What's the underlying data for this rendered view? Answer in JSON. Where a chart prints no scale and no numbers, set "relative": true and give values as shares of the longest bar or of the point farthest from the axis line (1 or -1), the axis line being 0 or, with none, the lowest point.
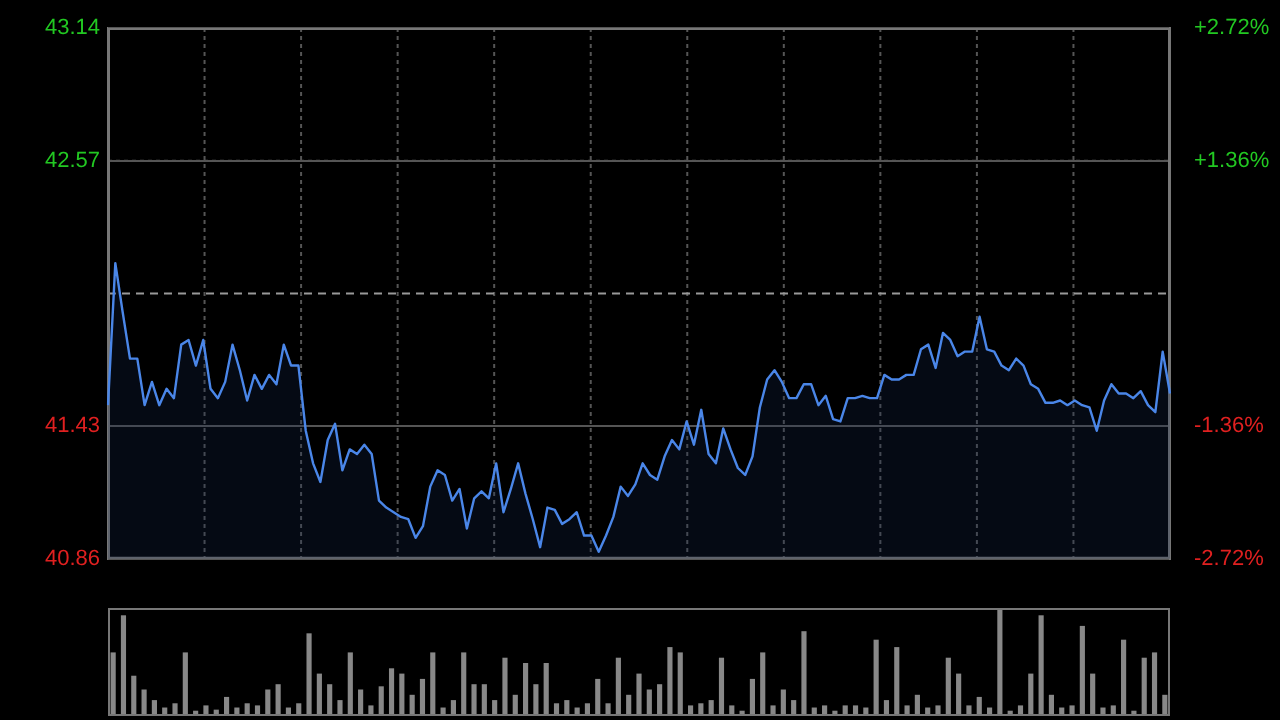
{
  "chart_data": [
    {
      "type": "area",
      "categories": [
        null,
        null,
        null,
        null,
        null,
        null,
        null,
        null,
        null,
        null,
        null,
        null,
        null,
        null,
        null,
        null,
        null,
        null,
        null,
        null,
        null,
        null,
        null,
        null,
        null,
        null,
        null,
        null,
        null,
        null,
        null,
        null,
        null,
        null,
        null,
        null,
        null,
        null,
        null,
        null,
        null,
        null,
        null,
        null,
        null,
        null,
        null,
        null,
        null,
        null,
        null,
        null,
        null,
        null,
        null,
        null,
        null,
        null,
        null,
        null,
        null,
        null,
        null,
        null,
        null,
        null,
        null,
        null,
        null,
        null,
        null,
        null,
        null,
        null,
        null,
        null,
        null,
        null,
        null,
        null,
        null,
        null,
        null,
        null,
        null,
        null,
        null,
        null,
        null,
        null,
        null,
        null,
        null,
        null,
        null,
        null,
        null,
        null,
        null,
        null,
        null,
        null,
        null,
        null,
        null,
        null,
        null,
        null,
        null,
        null,
        null,
        null,
        null,
        null,
        null,
        null,
        null,
        null,
        null,
        null,
        null,
        null,
        null,
        null,
        null,
        null,
        null,
        null,
        null,
        null,
        null,
        null,
        null,
        null,
        null,
        null,
        null,
        null,
        null,
        null,
        null,
        null,
        null,
        null,
        null,
        null
      ],
      "series": [
        {
          "color": "#4a86e8",
          "values": [
            41.52,
            42.13,
            41.92,
            41.72,
            41.72,
            41.52,
            41.62,
            41.52,
            41.59,
            41.55,
            41.78,
            41.8,
            41.69,
            41.8,
            41.59,
            41.55,
            41.62,
            41.78,
            41.67,
            41.54,
            41.65,
            41.59,
            41.65,
            41.61,
            41.78,
            41.69,
            41.69,
            41.41,
            41.27,
            41.19,
            41.37,
            41.44,
            41.24,
            41.33,
            41.31,
            41.35,
            41.31,
            41.11,
            41.08,
            41.06,
            41.04,
            41.03,
            40.95,
            41.0,
            41.17,
            41.24,
            41.22,
            41.11,
            41.16,
            40.99,
            41.12,
            41.15,
            41.12,
            41.27,
            41.06,
            41.16,
            41.27,
            41.14,
            41.03,
            40.91,
            41.08,
            41.07,
            41.01,
            41.03,
            41.06,
            40.96,
            40.96,
            40.89,
            40.96,
            41.04,
            41.17,
            41.13,
            41.18,
            41.27,
            41.22,
            41.2,
            41.3,
            41.37,
            41.33,
            41.45,
            41.35,
            41.5,
            41.31,
            41.27,
            41.42,
            41.33,
            41.25,
            41.22,
            41.3,
            41.51,
            41.63,
            41.67,
            41.62,
            41.55,
            41.55,
            41.61,
            41.61,
            41.52,
            41.56,
            41.46,
            41.45,
            41.55,
            41.55,
            41.56,
            41.55,
            41.55,
            41.65,
            41.63,
            41.63,
            41.65,
            41.65,
            41.76,
            41.78,
            41.68,
            41.83,
            41.8,
            41.73,
            41.75,
            41.75,
            41.9,
            41.76,
            41.75,
            41.69,
            41.67,
            41.72,
            41.69,
            41.61,
            41.59,
            41.53,
            41.53,
            41.54,
            41.52,
            41.54,
            41.52,
            41.51,
            41.41,
            41.54,
            41.61,
            41.57,
            41.57,
            41.55,
            41.58,
            41.52,
            41.49,
            41.75,
            41.57
          ]
        }
      ],
      "ylim": [
        40.86,
        43.14
      ],
      "yticks": [
        40.86,
        41.43,
        42.57,
        43.14
      ],
      "y2lim": [
        -2.72,
        2.72
      ],
      "y2ticks": [
        {
          "value": -2.72,
          "label": "-2.72%"
        },
        {
          "value": -1.36,
          "label": "-1.36%"
        },
        {
          "value": 1.36,
          "label": "+1.36%"
        },
        {
          "value": 2.72,
          "label": "+2.72%"
        }
      ],
      "ref_lines": [
        {
          "axis": "y",
          "value": 42,
          "line_style": "dashed",
          "color": "#999999"
        }
      ],
      "grid": true,
      "legend": false,
      "tick_labels": "y"
    },
    {
      "type": "bar",
      "relative": true,
      "categories": [
        null,
        null,
        null,
        null,
        null,
        null,
        null,
        null,
        null,
        null,
        null,
        null,
        null,
        null,
        null,
        null,
        null,
        null,
        null,
        null,
        null,
        null,
        null,
        null,
        null,
        null,
        null,
        null,
        null,
        null,
        null,
        null,
        null,
        null,
        null,
        null,
        null,
        null,
        null,
        null,
        null,
        null,
        null,
        null,
        null,
        null,
        null,
        null,
        null,
        null,
        null,
        null,
        null,
        null,
        null,
        null,
        null,
        null,
        null,
        null,
        null,
        null,
        null,
        null,
        null,
        null,
        null,
        null,
        null,
        null,
        null,
        null,
        null,
        null,
        null,
        null,
        null,
        null,
        null,
        null,
        null,
        null,
        null,
        null,
        null,
        null,
        null,
        null,
        null,
        null,
        null,
        null,
        null,
        null,
        null,
        null,
        null,
        null,
        null,
        null,
        null,
        null,
        null
      ],
      "values": [
        0.6,
        0.95,
        0.38,
        0.25,
        0.15,
        0.08,
        0.12,
        0.6,
        0.05,
        0.1,
        0.06,
        0.18,
        0.08,
        0.12,
        0.1,
        0.25,
        0.3,
        0.08,
        0.12,
        0.78,
        0.4,
        0.3,
        0.15,
        0.6,
        0.25,
        0.1,
        0.28,
        0.45,
        0.4,
        0.2,
        0.35,
        0.6,
        0.08,
        0.15,
        0.6,
        0.3,
        0.3,
        0.15,
        0.55,
        0.2,
        0.5,
        0.3,
        0.5,
        0.12,
        0.15,
        0.08,
        0.12,
        0.35,
        0.12,
        0.55,
        0.2,
        0.4,
        0.25,
        0.3,
        0.65,
        0.6,
        0.1,
        0.12,
        0.15,
        0.55,
        0.1,
        0.05,
        0.35,
        0.6,
        0.1,
        0.25,
        0.15,
        0.8,
        0.08,
        0.1,
        0.05,
        0.1,
        0.1,
        0.08,
        0.72,
        0.15,
        0.65,
        0.1,
        0.2,
        0.08,
        0.1,
        0.55,
        0.4,
        0.1,
        0.18,
        0.08,
        1.0,
        0.05,
        0.1,
        0.4,
        0.95,
        0.2,
        0.08,
        0.1,
        0.85,
        0.4,
        0.08,
        0.1,
        0.72,
        0.05,
        0.55,
        0.6,
        0.2
      ],
      "color": "#888888",
      "legend": false
    }
  ]
}
